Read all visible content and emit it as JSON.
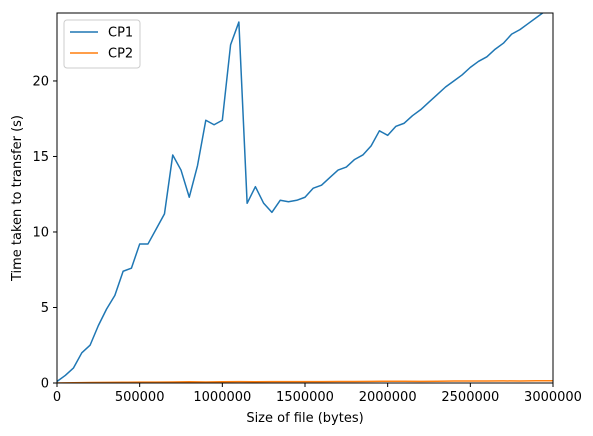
{
  "chart_data": {
    "type": "line",
    "xlabel": "Size of file (bytes)",
    "ylabel": "Time taken to transfer (s)",
    "xlim": [
      0,
      3000000
    ],
    "ylim": [
      0,
      24.5
    ],
    "x_ticks": [
      0,
      500000,
      1000000,
      1500000,
      2000000,
      2500000,
      3000000
    ],
    "x_tick_labels": [
      "0",
      "500000",
      "1000000",
      "1500000",
      "2000000",
      "2500000",
      "3000000"
    ],
    "y_ticks": [
      0,
      5,
      10,
      15,
      20
    ],
    "y_tick_labels": [
      "0",
      "5",
      "10",
      "15",
      "20"
    ],
    "grid": false,
    "legend_position": "top-left",
    "series": [
      {
        "name": "CP1",
        "color": "#1f77b4",
        "x": [
          0,
          50000,
          100000,
          150000,
          200000,
          250000,
          300000,
          350000,
          400000,
          450000,
          500000,
          550000,
          600000,
          650000,
          700000,
          750000,
          800000,
          850000,
          900000,
          950000,
          1000000,
          1050000,
          1100000,
          1150000,
          1200000,
          1250000,
          1300000,
          1350000,
          1400000,
          1450000,
          1500000,
          1550000,
          1600000,
          1650000,
          1700000,
          1750000,
          1800000,
          1850000,
          1900000,
          1950000,
          2000000,
          2050000,
          2100000,
          2150000,
          2200000,
          2250000,
          2300000,
          2350000,
          2400000,
          2450000,
          2500000,
          2550000,
          2600000,
          2650000,
          2700000,
          2750000,
          2800000,
          2850000,
          2900000,
          2950000,
          3000000
        ],
        "values": [
          0.1,
          0.5,
          1.0,
          2.0,
          2.5,
          3.8,
          4.9,
          5.8,
          7.4,
          7.6,
          9.2,
          9.2,
          10.2,
          11.2,
          15.1,
          14.1,
          12.3,
          14.4,
          17.4,
          17.1,
          17.4,
          22.4,
          23.9,
          11.9,
          13.0,
          11.9,
          11.3,
          12.1,
          12.0,
          12.1,
          12.3,
          12.9,
          13.1,
          13.6,
          14.1,
          14.3,
          14.8,
          15.1,
          15.7,
          16.7,
          16.4,
          17.0,
          17.2,
          17.7,
          18.1,
          18.6,
          19.1,
          19.6,
          20.0,
          20.4,
          20.9,
          21.3,
          21.6,
          22.1,
          22.5,
          23.1,
          23.4,
          23.8,
          24.2,
          24.6,
          24.9
        ]
      },
      {
        "name": "CP2",
        "color": "#ff7f0e",
        "x": [
          0,
          100000,
          200000,
          300000,
          400000,
          500000,
          600000,
          700000,
          800000,
          900000,
          1000000,
          1100000,
          1200000,
          1300000,
          1400000,
          1500000,
          1600000,
          1700000,
          1800000,
          1900000,
          2000000,
          2100000,
          2200000,
          2300000,
          2400000,
          2500000,
          2600000,
          2700000,
          2800000,
          2900000,
          3000000
        ],
        "values": [
          0.0,
          0.02,
          0.03,
          0.04,
          0.05,
          0.06,
          0.06,
          0.07,
          0.08,
          0.07,
          0.08,
          0.09,
          0.08,
          0.09,
          0.09,
          0.09,
          0.09,
          0.1,
          0.1,
          0.11,
          0.12,
          0.12,
          0.11,
          0.12,
          0.13,
          0.13,
          0.13,
          0.14,
          0.13,
          0.15,
          0.15
        ]
      }
    ]
  }
}
